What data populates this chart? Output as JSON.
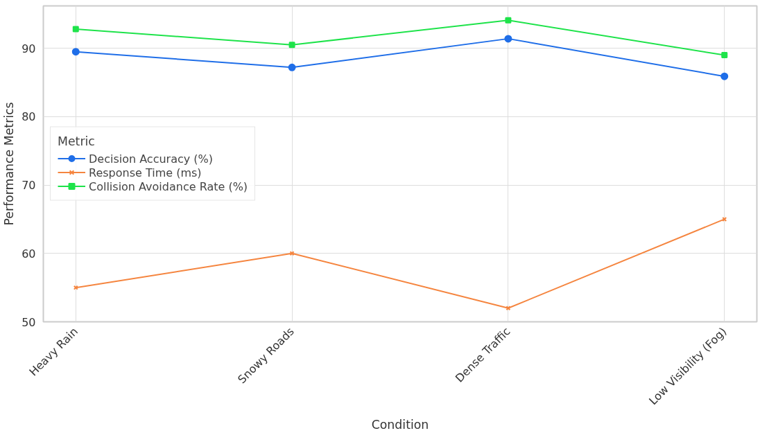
{
  "chart_data": {
    "type": "line",
    "xlabel": "Condition",
    "ylabel": "Performance Metrics",
    "legend_title": "Metric",
    "categories": [
      "Heavy Rain",
      "Snowy Roads",
      "Dense Traffic",
      "Low Visibility (Fog)"
    ],
    "series": [
      {
        "name": "Decision Accuracy (%)",
        "color": "#1f6ee8",
        "marker": "circle",
        "values": [
          89.5,
          87.2,
          91.4,
          85.9
        ]
      },
      {
        "name": "Response Time (ms)",
        "color": "#f5853f",
        "marker": "cross",
        "values": [
          55,
          60,
          52,
          65
        ]
      },
      {
        "name": "Collision Avoidance Rate (%)",
        "color": "#1ee34a",
        "marker": "square",
        "values": [
          92.8,
          90.5,
          94.1,
          89.0
        ]
      }
    ],
    "ylim": [
      50,
      96.2
    ],
    "yticks": [
      50,
      60,
      70,
      80,
      90
    ],
    "grid": true,
    "legend": "center left"
  }
}
